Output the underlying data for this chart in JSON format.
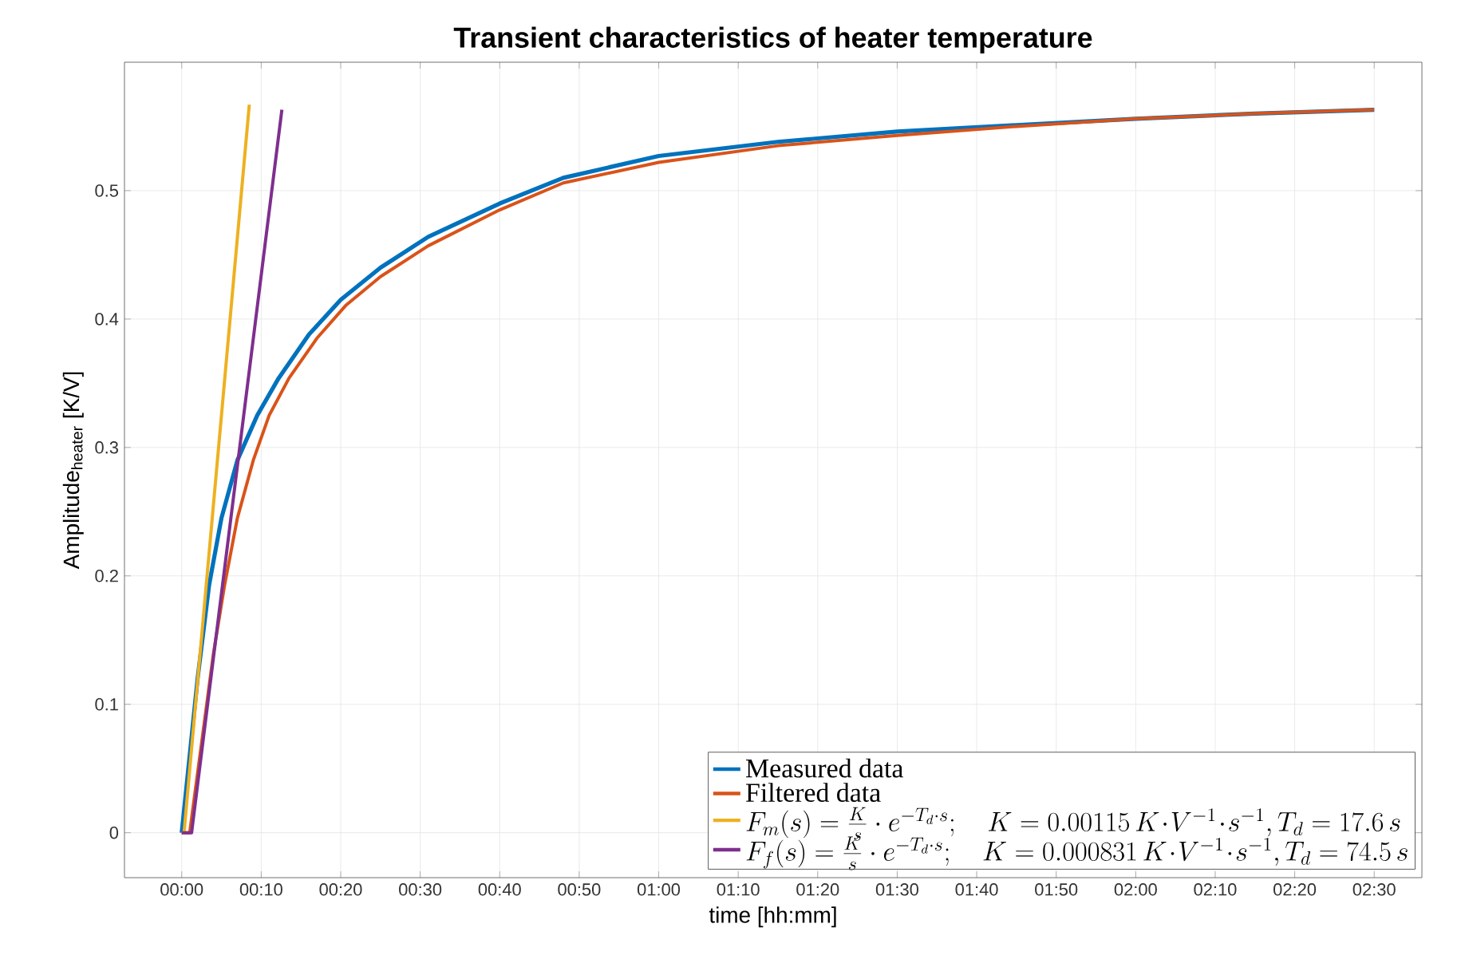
{
  "chart_data": {
    "type": "line",
    "title": "Transient characteristics of heater temperature",
    "xlabel": "time [hh:mm]",
    "ylabel": "Amplitude$_{heater}$ [K/V]",
    "xlim": [
      -0.12,
      2.6
    ],
    "ylim": [
      -0.035,
      0.6
    ],
    "xticks": [
      {
        "value": 0,
        "label": "00:00"
      },
      {
        "value": 0.16667,
        "label": "00:10"
      },
      {
        "value": 0.33333,
        "label": "00:20"
      },
      {
        "value": 0.5,
        "label": "00:30"
      },
      {
        "value": 0.66667,
        "label": "00:40"
      },
      {
        "value": 0.83333,
        "label": "00:50"
      },
      {
        "value": 1,
        "label": "01:00"
      },
      {
        "value": 1.16667,
        "label": "01:10"
      },
      {
        "value": 1.33333,
        "label": "01:20"
      },
      {
        "value": 1.5,
        "label": "01:30"
      },
      {
        "value": 1.66667,
        "label": "01:40"
      },
      {
        "value": 1.83333,
        "label": "01:50"
      },
      {
        "value": 2,
        "label": "02:00"
      },
      {
        "value": 2.16667,
        "label": "02:10"
      },
      {
        "value": 2.33333,
        "label": "02:20"
      },
      {
        "value": 2.5,
        "label": "02:30"
      }
    ],
    "yticks": [
      0,
      0.1,
      0.2,
      0.3,
      0.4,
      0.5
    ],
    "grid": true,
    "legend": "bottom right",
    "marker": "none",
    "line_style": "solid",
    "series": [
      {
        "name": "Measured data",
        "color": "#0072bd",
        "x": [
          0,
          0.0167,
          0.0333,
          0.0575,
          0.0833,
          0.1167,
          0.1583,
          0.2033,
          0.2667,
          0.3333,
          0.4167,
          0.5167,
          0.6667,
          0.8,
          1.0,
          1.25,
          1.5,
          1.75,
          2.0,
          2.25,
          2.5
        ],
        "values": [
          0,
          0.06,
          0.12,
          0.193,
          0.245,
          0.29,
          0.325,
          0.354,
          0.388,
          0.415,
          0.44,
          0.464,
          0.49,
          0.51,
          0.527,
          0.538,
          0.546,
          0.551,
          0.556,
          0.56,
          0.563
        ]
      },
      {
        "name": "Filtered data",
        "color": "#d95319",
        "x": [
          0,
          0.0167,
          0.0417,
          0.0667,
          0.09,
          0.1167,
          0.15,
          0.1833,
          0.225,
          0.2833,
          0.345,
          0.4167,
          0.5167,
          0.6667,
          0.8,
          1.0,
          1.25,
          1.5,
          1.75,
          2.0,
          2.25,
          2.5
        ],
        "values": [
          0,
          0,
          0.07,
          0.14,
          0.193,
          0.245,
          0.29,
          0.325,
          0.354,
          0.385,
          0.411,
          0.433,
          0.457,
          0.485,
          0.506,
          0.522,
          0.535,
          0.543,
          0.55,
          0.556,
          0.56,
          0.563
        ]
      },
      {
        "name": "F_m(s) = \\frac{K}{s}\\cdot e^{-T_d\\cdot s};\\quad K = 0.00115\\,K\\!\\cdot\\! V^{-1}\\!\\cdot\\! s^{-1}, T_d = 17.6\\,s",
        "color": "#edb120",
        "x": [
          0,
          0.0049,
          0.1417
        ],
        "values": [
          0,
          0,
          0.567
        ]
      },
      {
        "name": "F_f(s) = \\frac{K}{s}\\cdot e^{-T_d\\cdot s};\\quad K = 0.000831\\,K\\!\\cdot\\! V^{-1}\\!\\cdot\\! s^{-1}, T_d = 74.5\\,s",
        "color": "#7e2f8e",
        "x": [
          0,
          0.0207,
          0.21
        ],
        "values": [
          0,
          0,
          0.563
        ]
      }
    ]
  }
}
